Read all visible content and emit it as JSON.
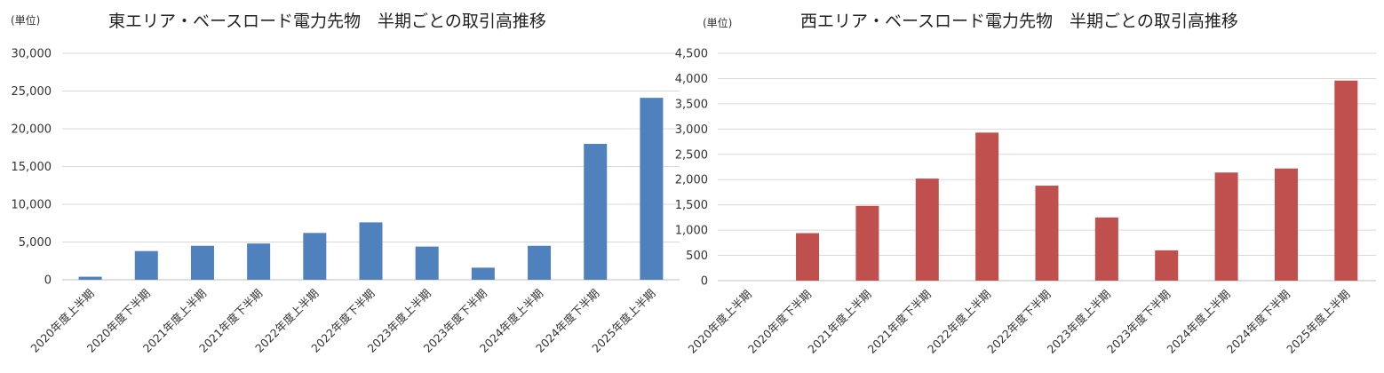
{
  "chart_data": [
    {
      "type": "bar",
      "title": "東エリア・ベースロード電力先物　半期ごとの取引高推移",
      "unit_label": "(単位)",
      "categories": [
        "2020年度上半期",
        "2020年度下半期",
        "2021年度上半期",
        "2021年度下半期",
        "2022年度上半期",
        "2022年度下半期",
        "2023年度上半期",
        "2023年度下半期",
        "2024年度上半期",
        "2024年度下半期",
        "2025年度上半期"
      ],
      "values": [
        400,
        3800,
        4500,
        4800,
        6200,
        7600,
        4400,
        1600,
        4500,
        18000,
        24100
      ],
      "ylim": [
        0,
        30000
      ],
      "yticks": [
        0,
        5000,
        10000,
        15000,
        20000,
        25000,
        30000
      ],
      "ytick_labels": [
        "0",
        "5,000",
        "10,000",
        "15,000",
        "20,000",
        "25,000",
        "30,000"
      ],
      "color": "#4F81BD",
      "grid": true,
      "legend": "none"
    },
    {
      "type": "bar",
      "title": "西エリア・ベースロード電力先物　半期ごとの取引高推移",
      "unit_label": "(単位)",
      "categories": [
        "2020年度上半期",
        "2020年度下半期",
        "2021年度上半期",
        "2021年度下半期",
        "2022年度上半期",
        "2022年度下半期",
        "2023年度上半期",
        "2023年度下半期",
        "2024年度上半期",
        "2024年度下半期",
        "2025年度上半期"
      ],
      "values": [
        0,
        940,
        1480,
        2020,
        2930,
        1880,
        1250,
        600,
        2140,
        2220,
        3960
      ],
      "ylim": [
        0,
        4500
      ],
      "yticks": [
        0,
        500,
        1000,
        1500,
        2000,
        2500,
        3000,
        3500,
        4000,
        4500
      ],
      "ytick_labels": [
        "0",
        "500",
        "1,000",
        "1,500",
        "2,000",
        "2,500",
        "3,000",
        "3,500",
        "4,000",
        "4,500"
      ],
      "color": "#C0504D",
      "grid": true,
      "legend": "none"
    }
  ]
}
